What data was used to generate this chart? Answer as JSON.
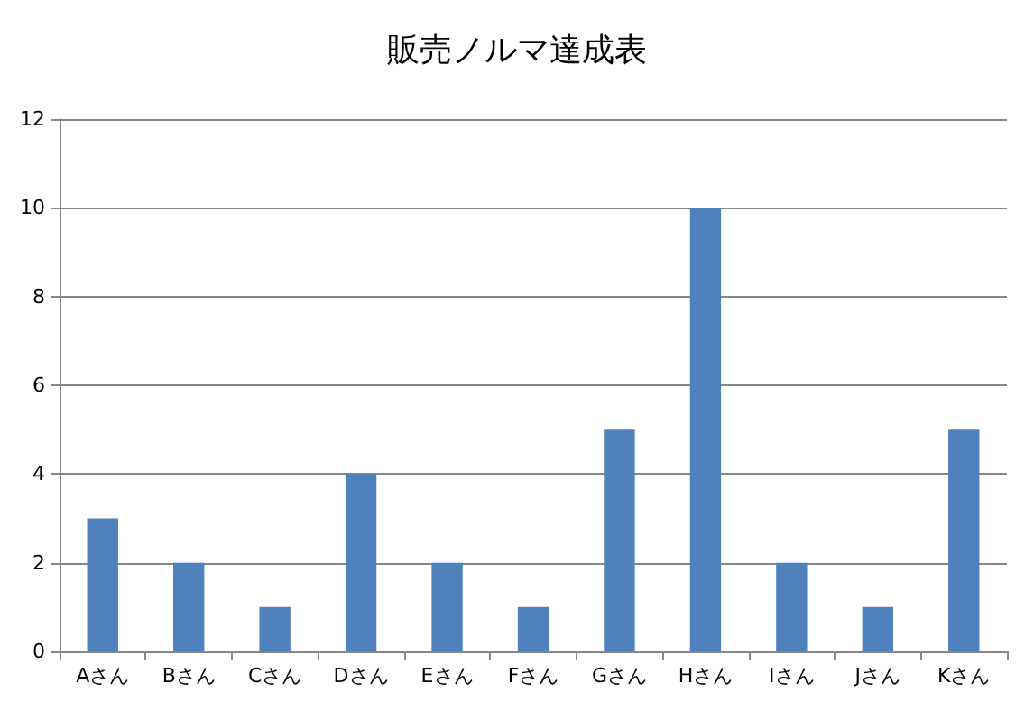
{
  "chart_data": {
    "type": "bar",
    "title": "販売ノルマ達成表",
    "categories": [
      "Aさん",
      "Bさん",
      "Cさん",
      "Dさん",
      "Eさん",
      "Fさん",
      "Gさん",
      "Hさん",
      "Iさん",
      "Jさん",
      "Kさん"
    ],
    "values": [
      3,
      2,
      1,
      4,
      2,
      1,
      5,
      10,
      2,
      1,
      5
    ],
    "color": "#4f81bd",
    "ylim": [
      0,
      12
    ],
    "yticks": [
      0,
      2,
      4,
      6,
      8,
      10,
      12
    ],
    "grid": "y"
  }
}
